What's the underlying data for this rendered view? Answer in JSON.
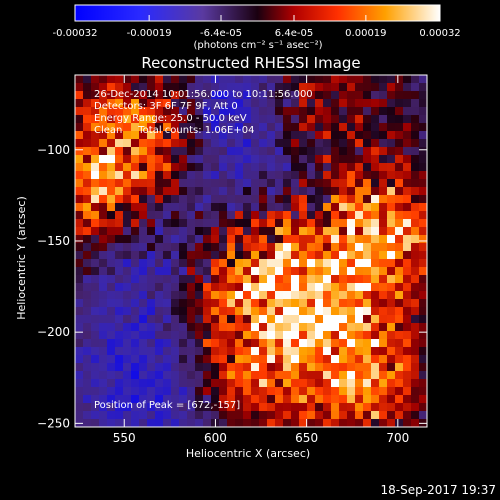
{
  "colorbar": {
    "tick_labels": [
      "-0.00032",
      "-0.00019",
      "-6.4e-05",
      "6.4e-05",
      "0.00019",
      "0.00032"
    ],
    "tick_values": [
      -0.00032,
      -0.00019,
      -6.4e-05,
      6.4e-05,
      0.00019,
      0.00032
    ],
    "range": [
      -0.00032,
      0.00032
    ],
    "units_label": "(photons cm⁻² s⁻¹ asec⁻²)"
  },
  "chart_data": {
    "type": "heatmap",
    "title": "Reconstructed RHESSI Image",
    "xlabel": "Heliocentric X (arcsec)",
    "ylabel": "Heliocentric Y (arcsec)",
    "xlim": [
      523,
      716
    ],
    "ylim": [
      -252,
      -59
    ],
    "x_ticks": [
      550,
      600,
      650,
      700
    ],
    "x_tick_labels": [
      "550",
      "600",
      "650",
      "700"
    ],
    "y_ticks": [
      -100,
      -150,
      -200,
      -250
    ],
    "y_tick_labels": [
      "−100",
      "−150",
      "−200",
      "−250"
    ],
    "annotations": [
      "26-Dec-2014 10:01:56.000 to 10:11:56.000",
      "Detectors: 3F 6F 7F 9F, Att 0",
      "Energy Range: 25.0 - 50.0 keV",
      "Clean     Total counts: 1.06E+04"
    ],
    "peak_label": "Position of Peak = [672,-157]",
    "peak_position": [
      672,
      -157
    ]
  },
  "footer": {
    "timestamp": "18-Sep-2017 19:37"
  },
  "colors": {
    "background": "#000000",
    "text": "#ffffff"
  }
}
